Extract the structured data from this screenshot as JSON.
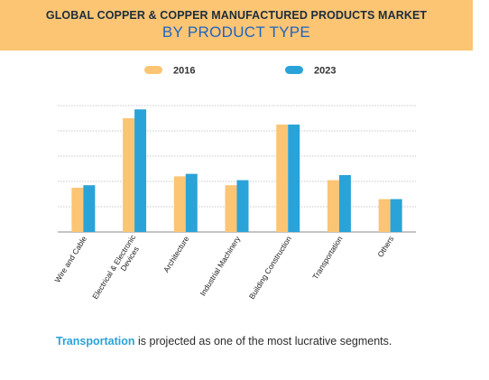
{
  "header": {
    "title": "GLOBAL COPPER & COPPER MANUFACTURED PRODUCTS MARKET",
    "subtitle": "BY PRODUCT TYPE"
  },
  "footer": {
    "highlight": "Transportation",
    "text": " is projected as one of the most lucrative segments."
  },
  "chart_data": {
    "type": "bar",
    "categories": [
      "Wire and Cable",
      "Electrical & Electronic Devices",
      "Architecture",
      "Industrial Machinery",
      "Building Construction",
      "Transportation",
      "Others"
    ],
    "series": [
      {
        "name": "2016",
        "color": "#fbc574",
        "values": [
          1.75,
          4.5,
          2.2,
          1.85,
          4.25,
          2.05,
          1.3
        ]
      },
      {
        "name": "2023",
        "color": "#2aa3d8",
        "values": [
          1.85,
          4.85,
          2.3,
          2.05,
          4.25,
          2.25,
          1.3
        ]
      }
    ],
    "xlabel": "",
    "ylabel": "",
    "ylim": [
      0,
      5
    ],
    "grid": true,
    "legend": "top"
  }
}
